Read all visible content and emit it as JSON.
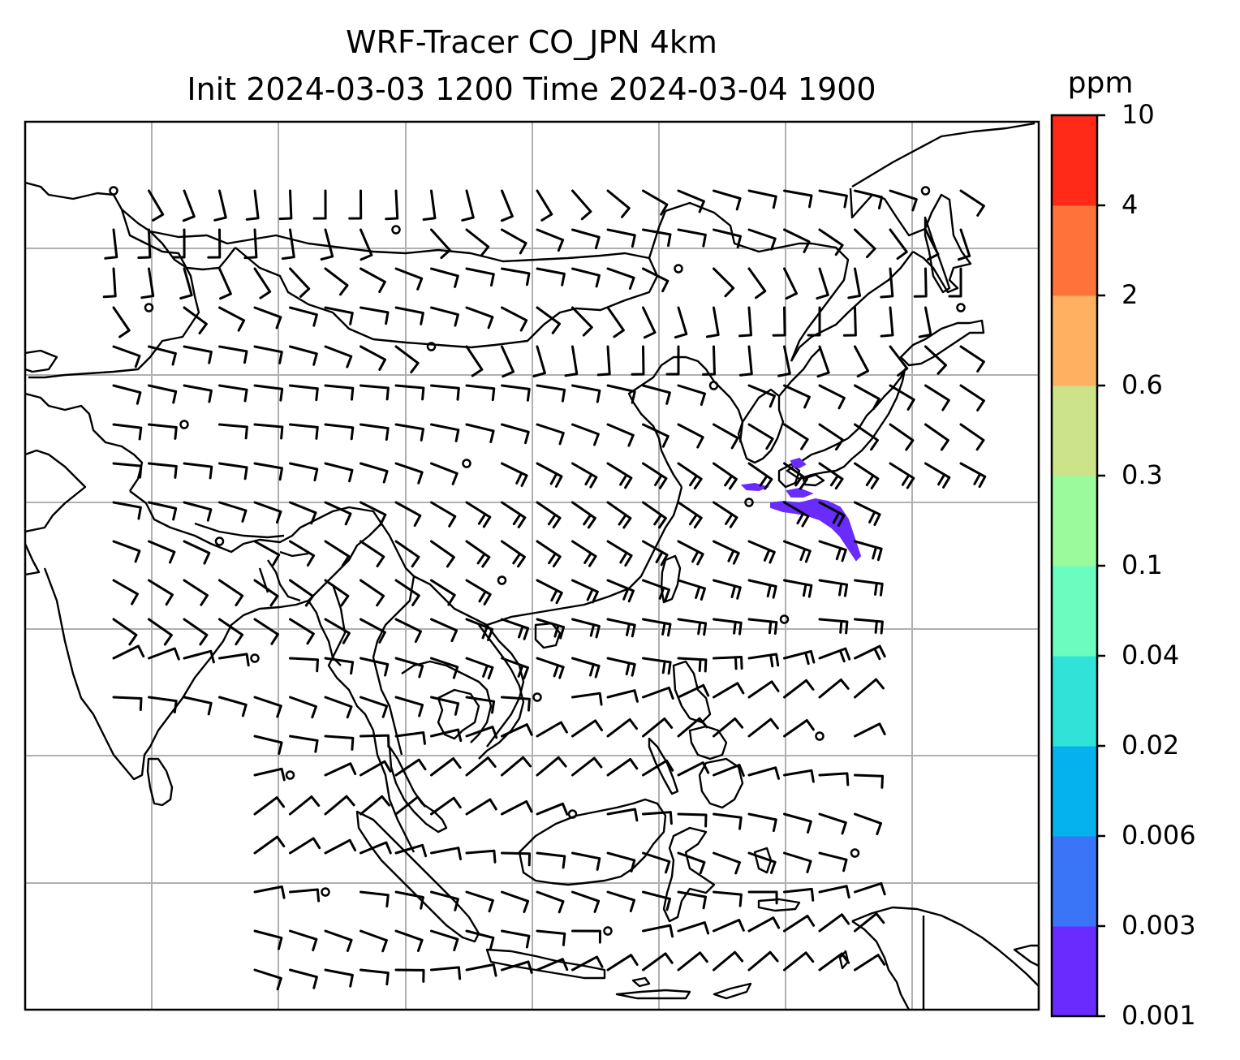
{
  "title": {
    "line1": "WRF-Tracer CO_JPN 4km",
    "line2": "Init 2024-03-03 1200 Time 2024-03-04 1900"
  },
  "map": {
    "variable": "CO tracer",
    "grid_lines": true,
    "wind_barbs": true,
    "plume_color": "#6a2bff",
    "coastline_color": "#000000",
    "grid_color": "#b0b0b0"
  },
  "colorbar": {
    "unit": "ppm",
    "levels": [
      "0.001",
      "0.003",
      "0.006",
      "0.02",
      "0.04",
      "0.1",
      "0.3",
      "0.6",
      "2",
      "4",
      "10"
    ],
    "colors": [
      "#6a2bff",
      "#3a75f7",
      "#05b2ee",
      "#31e2d8",
      "#6bfcc0",
      "#9bfb9b",
      "#cde38a",
      "#ffb060",
      "#ff733a",
      "#ff2a18"
    ]
  }
}
